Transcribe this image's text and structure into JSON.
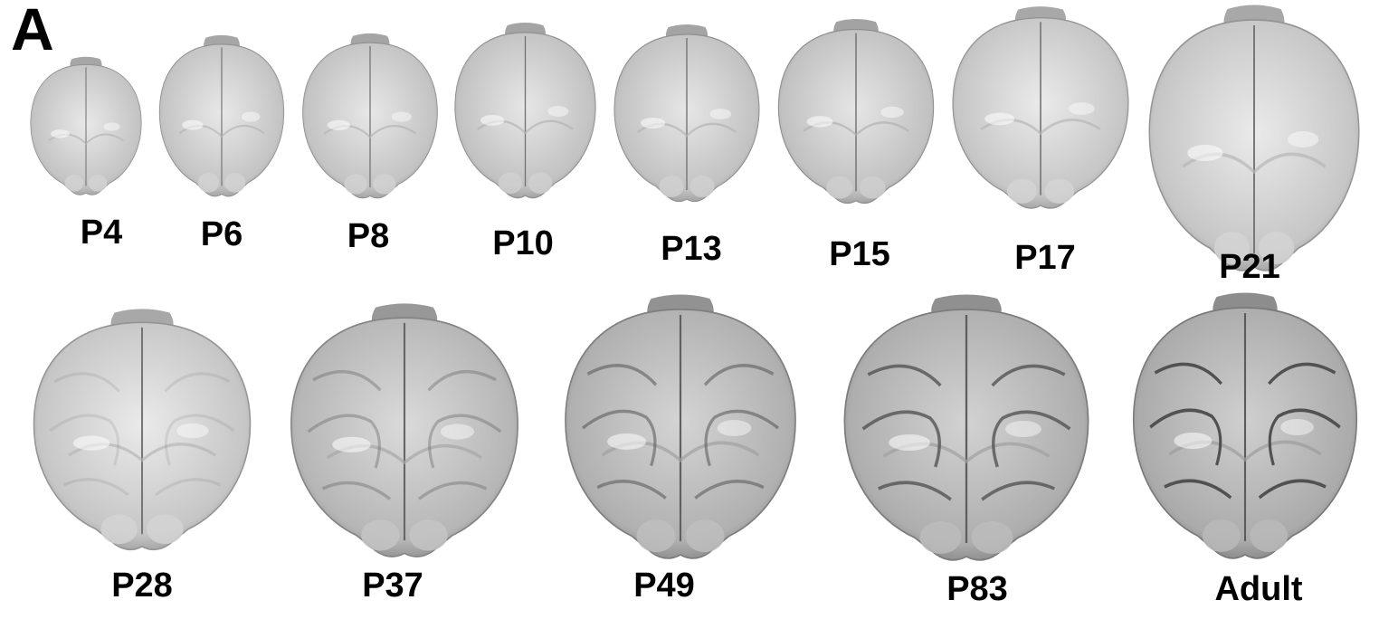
{
  "panel_label": "A",
  "specimens": [
    {
      "label": "P4"
    },
    {
      "label": "P6"
    },
    {
      "label": "P8"
    },
    {
      "label": "P10"
    },
    {
      "label": "P13"
    },
    {
      "label": "P15"
    },
    {
      "label": "P17"
    },
    {
      "label": "P21"
    },
    {
      "label": "P28"
    },
    {
      "label": "P37"
    },
    {
      "label": "P49"
    },
    {
      "label": "P83"
    },
    {
      "label": "Adult"
    }
  ],
  "colors": {
    "background": "#ffffff",
    "label_text": "#000000"
  }
}
